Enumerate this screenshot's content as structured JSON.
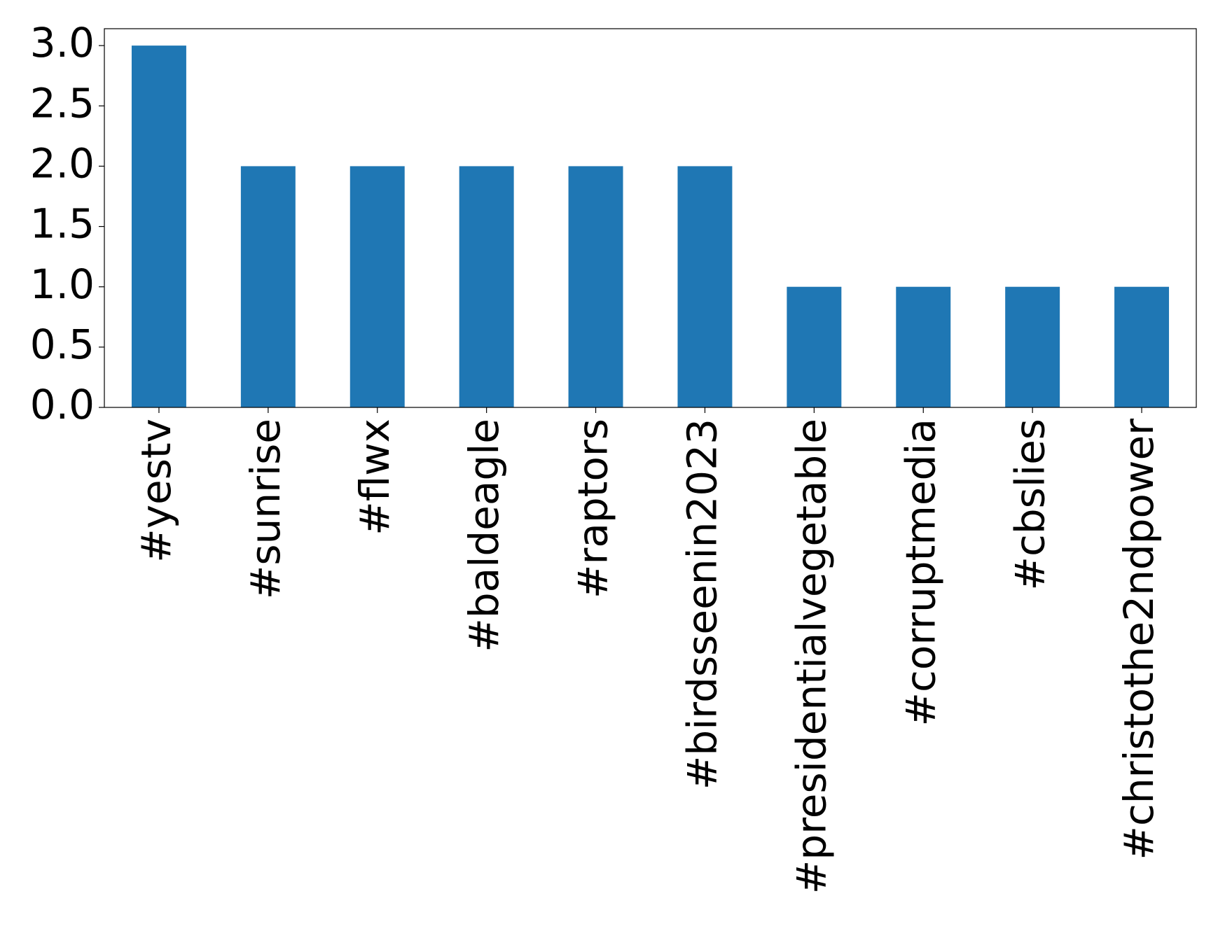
{
  "chart_data": {
    "type": "bar",
    "categories": [
      "#yestv",
      "#sunrise",
      "#flwx",
      "#baldeagle",
      "#raptors",
      "#birdsseenin2023",
      "#presidentialvegetable",
      "#corruptmedia",
      "#cbslies",
      "#christothe2ndpower"
    ],
    "values": [
      3,
      2,
      2,
      2,
      2,
      2,
      1,
      1,
      1,
      1
    ],
    "color": "#1f77b4",
    "ylim": [
      0,
      3.14
    ],
    "yticks": [
      {
        "value": 0,
        "label": "0.0"
      },
      0.5,
      {
        "value": 1,
        "label": "1.0"
      },
      1.5,
      {
        "value": 2,
        "label": "2.0"
      },
      2.5,
      {
        "value": 3,
        "label": "3.0"
      }
    ],
    "grid": false
  }
}
